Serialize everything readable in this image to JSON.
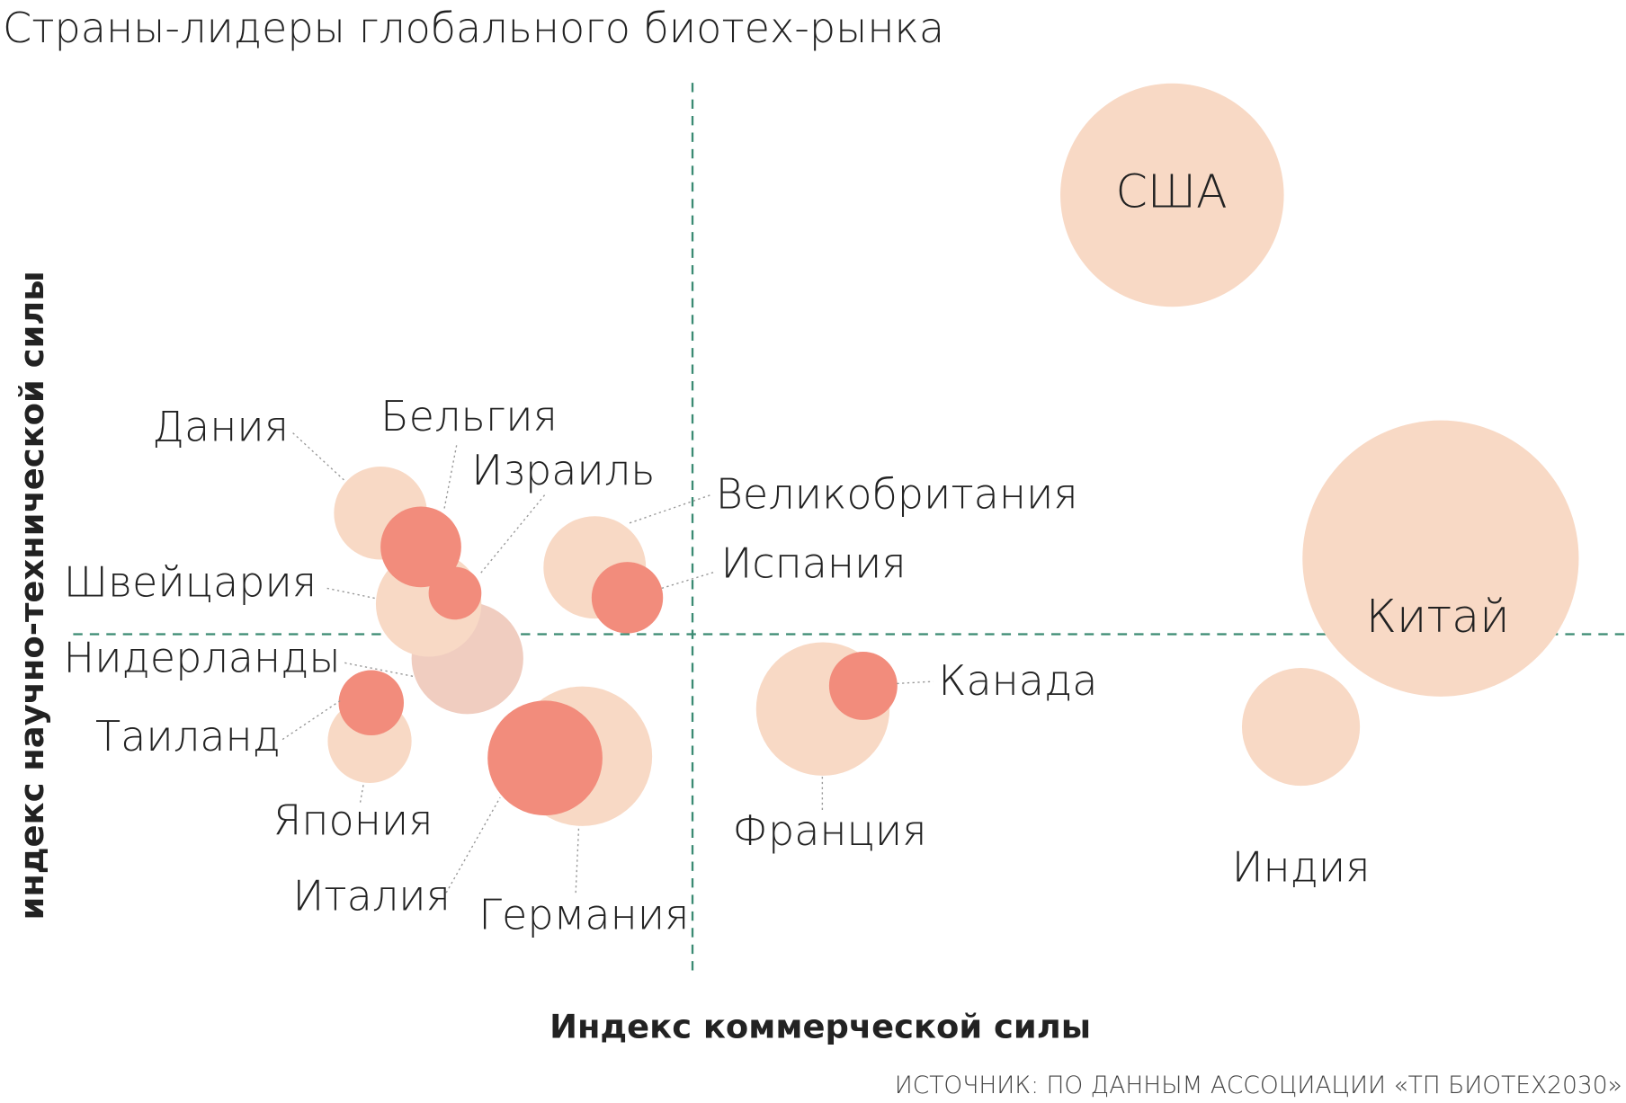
{
  "chart_data": {
    "type": "bubble",
    "title": "Страны-лидеры глобального биотех-рынка",
    "x_label": "Индекс коммерческой силы",
    "y_label": "индекс научно-технической силы",
    "source": "ИСТОЧНИК: ПО ДАННЫМ АССОЦИАЦИИ «ТП БИОТЕХ2030»",
    "xlim": [
      0,
      100
    ],
    "ylim": [
      0,
      100
    ],
    "x_divider": 39.9,
    "y_divider": 38.1,
    "points": [
      {
        "name": "США",
        "x": 70.8,
        "y": 87.4,
        "size": 7.2,
        "color": "#f8d9c5"
      },
      {
        "name": "Китай",
        "x": 88.1,
        "y": 46.6,
        "size": 8.9,
        "color": "#f8d9c5"
      },
      {
        "name": "Индия",
        "x": 79.1,
        "y": 27.7,
        "size": 3.8,
        "color": "#f8d9c5"
      },
      {
        "name": "Франция",
        "x": 48.3,
        "y": 29.7,
        "size": 4.3,
        "color": "#f8d9c5"
      },
      {
        "name": "Великобритания",
        "x": 33.6,
        "y": 45.6,
        "size": 3.3,
        "color": "#f8d9c5"
      },
      {
        "name": "Дания",
        "x": 19.8,
        "y": 51.7,
        "size": 3.0,
        "color": "#f8d9c5"
      },
      {
        "name": "Нидерланды",
        "x": 25.4,
        "y": 35.4,
        "size": 3.6,
        "color": "#f0cdc0"
      },
      {
        "name": "Швейцария",
        "x": 22.9,
        "y": 41.5,
        "size": 3.4,
        "color": "#f8d9c5"
      },
      {
        "name": "Япония",
        "x": 19.1,
        "y": 26.1,
        "size": 2.7,
        "color": "#f8d9c5"
      },
      {
        "name": "Германия",
        "x": 32.8,
        "y": 24.4,
        "size": 4.5,
        "color": "#f8d9c5"
      },
      {
        "name": "Канада",
        "x": 50.9,
        "y": 32.3,
        "size": 2.2,
        "color": "#f28c7c"
      },
      {
        "name": "Испания",
        "x": 35.7,
        "y": 42.2,
        "size": 2.3,
        "color": "#f28c7c"
      },
      {
        "name": "Бельгия",
        "x": 22.4,
        "y": 47.9,
        "size": 2.6,
        "color": "#f28c7c"
      },
      {
        "name": "Израиль",
        "x": 24.6,
        "y": 42.7,
        "size": 1.7,
        "color": "#f28c7c"
      },
      {
        "name": "Таиланд",
        "x": 19.2,
        "y": 30.4,
        "size": 2.1,
        "color": "#f28c7c"
      },
      {
        "name": "Италия",
        "x": 30.4,
        "y": 24.2,
        "size": 3.7,
        "color": "#f28c7c"
      }
    ]
  }
}
